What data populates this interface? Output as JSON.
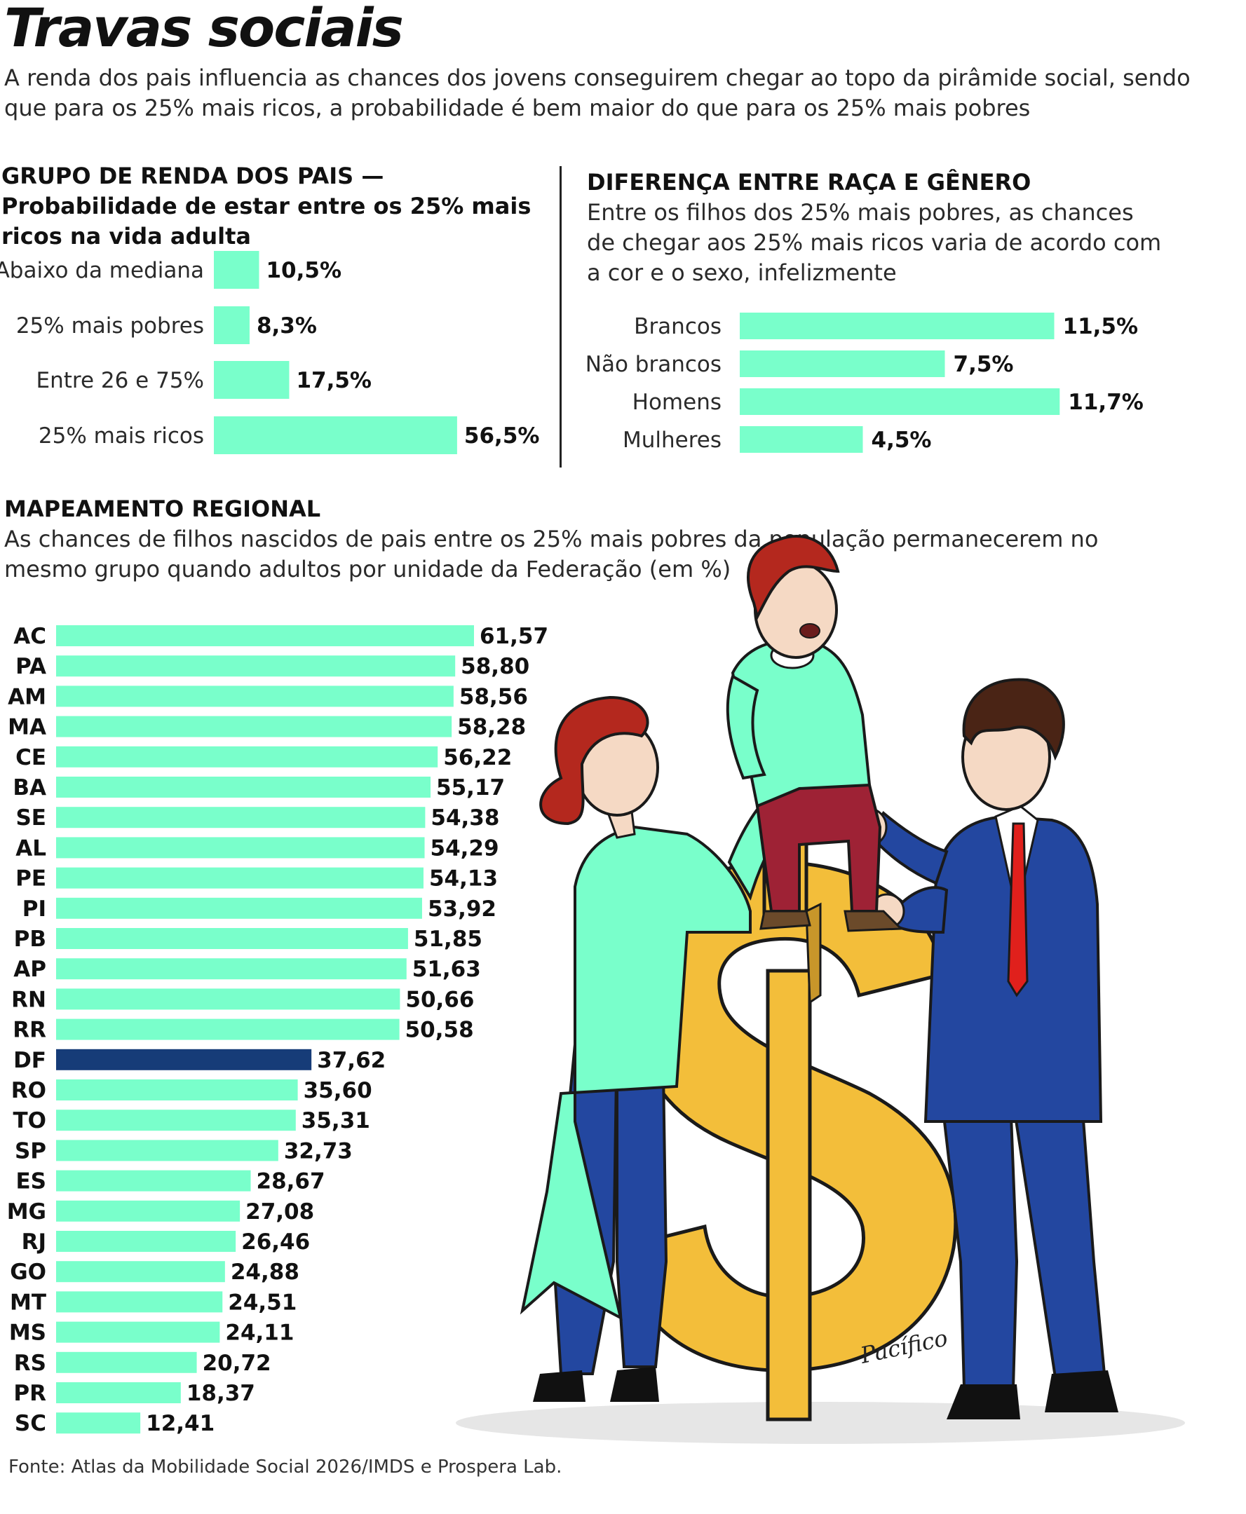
{
  "title": "Travas sociais",
  "subtitle": "A renda dos pais influencia as chances dos jovens conseguirem chegar ao topo da pirâmide social, sendo que para os 25% mais ricos, a probabilidade é bem maior do que para os 25% mais pobres",
  "source": "Fonte: Atlas da Mobilidade Social 2026/IMDS e Prospera Lab.",
  "signature": "Pacífico",
  "colors": {
    "bar": "#79FFCB",
    "highlight": "#163C78",
    "text": "#111111"
  },
  "chart_data": [
    {
      "type": "bar",
      "orientation": "horizontal",
      "title": "GRUPO DE RENDA DOS PAIS — Probabilidade de estar entre os 25% mais ricos na vida adulta",
      "categories": [
        "Abaixo da mediana",
        "25% mais pobres",
        "Entre 26 e 75%",
        "25% mais ricos"
      ],
      "values": [
        10.5,
        8.3,
        17.5,
        56.5
      ],
      "value_labels": [
        "10,5%",
        "8,3%",
        "17,5%",
        "56,5%"
      ],
      "unit": "%"
    },
    {
      "type": "bar",
      "orientation": "horizontal",
      "title": "DIFERENÇA ENTRE RAÇA E GÊNERO",
      "subtitle": "Entre os filhos dos 25% mais pobres, as chances de chegar aos 25% mais ricos varia de acordo com a cor e o sexo, infelizmente",
      "categories": [
        "Brancos",
        "Não brancos",
        "Homens",
        "Mulheres"
      ],
      "values": [
        11.5,
        7.5,
        11.7,
        4.5
      ],
      "value_labels": [
        "11,5%",
        "7,5%",
        "11,7%",
        "4,5%"
      ],
      "unit": "%"
    },
    {
      "type": "bar",
      "orientation": "horizontal",
      "title": "MAPEAMENTO REGIONAL",
      "subtitle": "As chances de filhos nascidos de pais entre os 25% mais pobres da população permanecerem no mesmo grupo quando adultos por unidade da Federação (em %)",
      "categories": [
        "AC",
        "PA",
        "AM",
        "MA",
        "CE",
        "BA",
        "SE",
        "AL",
        "PE",
        "PI",
        "PB",
        "AP",
        "RN",
        "RR",
        "DF",
        "RO",
        "TO",
        "SP",
        "ES",
        "MG",
        "RJ",
        "GO",
        "MT",
        "MS",
        "RS",
        "PR",
        "SC"
      ],
      "values": [
        61.57,
        58.8,
        58.56,
        58.28,
        56.22,
        55.17,
        54.38,
        54.29,
        54.13,
        53.92,
        51.85,
        51.63,
        50.66,
        50.58,
        37.62,
        35.6,
        35.31,
        32.73,
        28.67,
        27.08,
        26.46,
        24.88,
        24.51,
        24.11,
        20.72,
        18.37,
        12.41
      ],
      "value_labels": [
        "61,57",
        "58,80",
        "58,56",
        "58,28",
        "56,22",
        "55,17",
        "54,38",
        "54,29",
        "54,13",
        "53,92",
        "51,85",
        "51,63",
        "50,66",
        "50,58",
        "37,62",
        "35,60",
        "35,31",
        "32,73",
        "28,67",
        "27,08",
        "26,46",
        "24,88",
        "24,51",
        "24,11",
        "20,72",
        "18,37",
        "12,41"
      ],
      "highlight": "DF",
      "unit": "%"
    }
  ]
}
